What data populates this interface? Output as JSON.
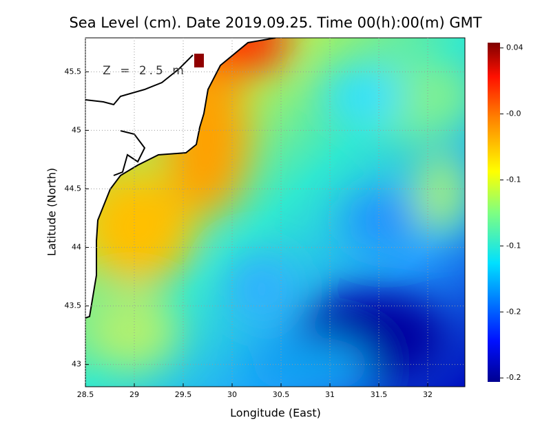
{
  "chart_data": {
    "type": "heatmap",
    "title": "Sea Level (cm). Date 2019.09.25. Time 00(h):00(m) GMT",
    "annotation": "Z = 2.5 m",
    "x_label": "Longitude (East)",
    "y_label": "Latitude (North)",
    "xlim": [
      28.5,
      32.38
    ],
    "ylim": [
      42.81,
      45.79
    ],
    "xticks": [
      28.5,
      29,
      29.5,
      30,
      30.5,
      31,
      31.5,
      32
    ],
    "yticks": [
      43,
      43.5,
      44,
      44.5,
      45,
      45.5
    ],
    "grid": true,
    "colorbar": {
      "clim": [
        -0.213,
        0.044
      ],
      "ticks": [
        {
          "value": 0.04,
          "label": "0.04"
        },
        {
          "value": -0.01,
          "label": "-0.0"
        },
        {
          "value": -0.06,
          "label": "-0.1"
        },
        {
          "value": -0.11,
          "label": "-0.1"
        },
        {
          "value": -0.16,
          "label": "-0.2"
        },
        {
          "value": -0.21,
          "label": "-0.2"
        }
      ]
    }
  }
}
